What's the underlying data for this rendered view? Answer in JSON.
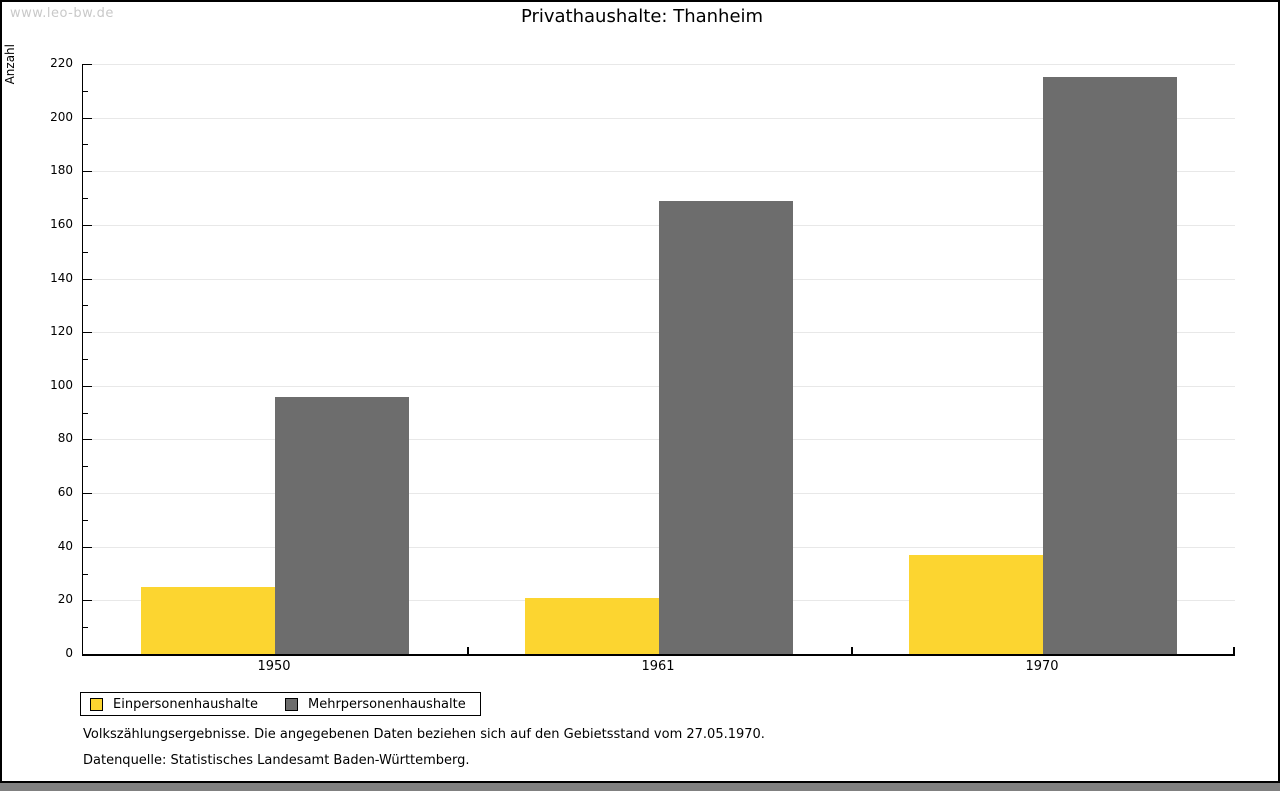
{
  "watermark": "www.leo-bw.de",
  "header": {
    "title": "Privathaushalte: Thanheim"
  },
  "chart_data": {
    "type": "bar",
    "title": "Privathaushalte: Thanheim",
    "ylabel": "Anzahl",
    "xlabel": "",
    "categories": [
      "1950",
      "1961",
      "1970"
    ],
    "series": [
      {
        "name": "Einpersonenhaushalte",
        "color": "#FCD530",
        "values": [
          25,
          21,
          37
        ]
      },
      {
        "name": "Mehrpersonenhaushalte",
        "color": "#6D6D6D",
        "values": [
          96,
          169,
          215
        ]
      }
    ],
    "ylim": [
      0,
      220
    ],
    "ytick_step": 20,
    "minor_tick_step": 10,
    "grid": true,
    "legend_position": "bottom-left"
  },
  "footnotes": {
    "line1": "Volkszählungsergebnisse. Die angegebenen Daten beziehen sich auf den Gebietsstand vom 27.05.1970.",
    "line2": "Datenquelle: Statistisches Landesamt Baden-Württemberg."
  },
  "colors": {
    "bar_yellow": "#FCD530",
    "bar_gray": "#6D6D6D",
    "gridline": "#E8E8E8",
    "watermark": "#C9C9C9",
    "axis": "#000000",
    "bottom_strip": "#808080"
  }
}
